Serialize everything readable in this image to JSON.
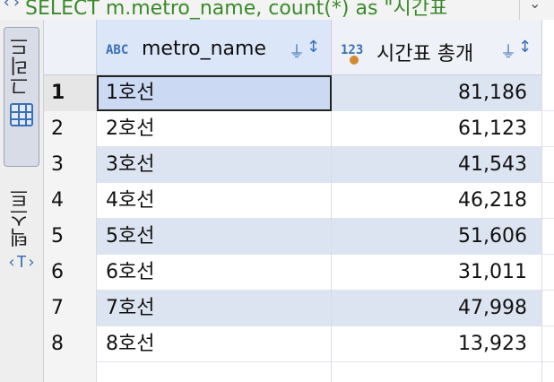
{
  "query": {
    "icon": "sql-icon",
    "text": "SELECT m.metro_name, count(*) as \"시간표"
  },
  "side_tabs": [
    {
      "label": "그리드",
      "icon": "grid-icon",
      "active": true
    },
    {
      "label": "텍스트",
      "icon": "text-icon",
      "active": false
    }
  ],
  "columns": [
    {
      "type": "ABC",
      "name": "metro_name"
    },
    {
      "type": "123",
      "name": "시간표 총개"
    }
  ],
  "rows": [
    {
      "n": "1",
      "name": "1호선",
      "count": "81,186"
    },
    {
      "n": "2",
      "name": "2호선",
      "count": "61,123"
    },
    {
      "n": "3",
      "name": "3호선",
      "count": "41,543"
    },
    {
      "n": "4",
      "name": "4호선",
      "count": "46,218"
    },
    {
      "n": "5",
      "name": "5호선",
      "count": "51,606"
    },
    {
      "n": "6",
      "name": "6호선",
      "count": "31,011"
    },
    {
      "n": "7",
      "name": "7호선",
      "count": "47,998"
    },
    {
      "n": "8",
      "name": "8호선",
      "count": "13,923"
    }
  ],
  "colors": {
    "accent": "#3b6fb6",
    "row_alt": "#dde4f1",
    "header": "#eef1f7",
    "query_text": "#3a8a2a"
  }
}
